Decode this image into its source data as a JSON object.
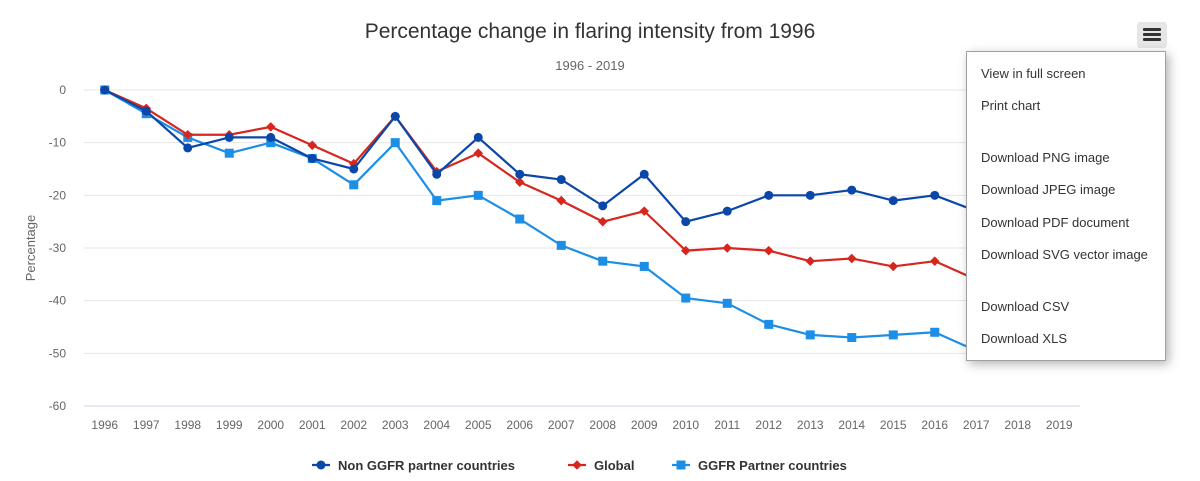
{
  "chart_data": {
    "type": "line",
    "title": "Percentage change in flaring intensity from 1996",
    "subtitle": "1996 - 2019",
    "ylabel": "Percentage",
    "xlabel": "",
    "ylim": [
      -60,
      0
    ],
    "yticks": [
      0,
      -10,
      -20,
      -30,
      -40,
      -50,
      -60
    ],
    "categories": [
      "1996",
      "1997",
      "1998",
      "1999",
      "2000",
      "2001",
      "2002",
      "2003",
      "2004",
      "2005",
      "2006",
      "2007",
      "2008",
      "2009",
      "2010",
      "2011",
      "2012",
      "2013",
      "2014",
      "2015",
      "2016",
      "2017",
      "2018",
      "2019"
    ],
    "grid": true,
    "legend_position": "bottom",
    "series": [
      {
        "name": "Non GGFR partner countries",
        "color": "#0b47a8",
        "marker": "circle",
        "values": [
          0,
          -4,
          -11,
          -9,
          -9,
          -13,
          -15,
          -5,
          -16,
          -9,
          -16,
          -17,
          -22,
          -16,
          -25,
          -23,
          -20,
          -20,
          -19,
          -21,
          -20,
          -23,
          null,
          null
        ]
      },
      {
        "name": "Global",
        "color": "#d7261e",
        "marker": "diamond",
        "values": [
          0,
          -3.5,
          -8.5,
          -8.5,
          -7,
          -10.5,
          -14,
          -5,
          -15.5,
          -12,
          -17.5,
          -21,
          -25,
          -23,
          -30.5,
          -30,
          -30.5,
          -32.5,
          -32,
          -33.5,
          -32.5,
          -36,
          null,
          null
        ]
      },
      {
        "name": "GGFR Partner countries",
        "color": "#1c8ee6",
        "marker": "square",
        "values": [
          0,
          -4.5,
          -9,
          -12,
          -10,
          -13,
          -18,
          -10,
          -21,
          -20,
          -24.5,
          -29.5,
          -32.5,
          -33.5,
          -39.5,
          -40.5,
          -44.5,
          -46.5,
          -47,
          -46.5,
          -46,
          -49.5,
          null,
          null
        ]
      }
    ]
  },
  "menu": {
    "button_icon": "hamburger-menu-icon",
    "items": [
      "View in full screen",
      "Print chart",
      "Download PNG image",
      "Download JPEG image",
      "Download PDF document",
      "Download SVG vector image",
      "Download CSV",
      "Download XLS"
    ]
  }
}
